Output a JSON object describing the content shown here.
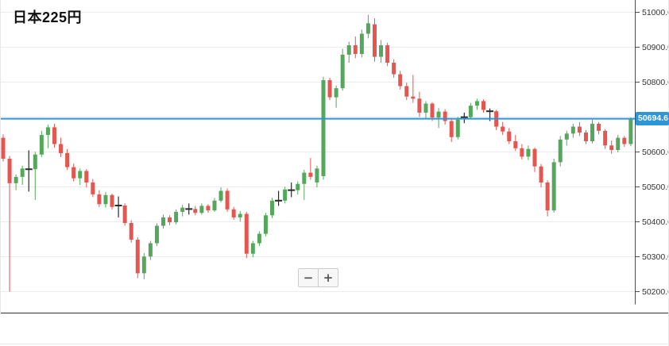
{
  "header": {
    "title": "日本225円"
  },
  "price_line": {
    "value": 50694.6,
    "label": "50694.6"
  },
  "controls": {
    "zoom_out_label": "−",
    "zoom_in_label": "+"
  },
  "colors": {
    "up": "#55a85b",
    "down": "#e4564f",
    "doji": "#2a2a2a",
    "price_line": "#2f95d9",
    "tag_bg": "#2f95d9",
    "tag_text": "#ffffff",
    "grid": "#ececec",
    "axis_line": "#4d4d4d",
    "label_text": "#333333"
  },
  "chart_data": {
    "type": "candlestick",
    "title": "日本225円",
    "legend": [],
    "grid": true,
    "x_axis": {
      "labels_visible": false
    },
    "y_axis": {
      "side": "right",
      "ticks": [
        51000.0,
        50900.0,
        50800.0,
        50700.0,
        50600.0,
        50500.0,
        50400.0,
        50300.0,
        50200.0
      ],
      "tick_format": "1-decimal",
      "range_shown": [
        50150,
        51030
      ]
    },
    "last_price": 50694.6,
    "doji_indices": [
      4,
      18,
      29,
      43,
      45,
      72,
      76
    ],
    "candles_ohlc": [
      [
        50640,
        50650,
        50572,
        50580
      ],
      [
        50580,
        50588,
        50199,
        50510
      ],
      [
        50510,
        50535,
        50490,
        50528
      ],
      [
        50528,
        50560,
        50505,
        50552
      ],
      [
        50552,
        50604,
        50486,
        50550
      ],
      [
        50550,
        50600,
        50462,
        50592
      ],
      [
        50592,
        50660,
        50585,
        50648
      ],
      [
        50648,
        50678,
        50610,
        50670
      ],
      [
        50670,
        50680,
        50612,
        50622
      ],
      [
        50622,
        50640,
        50585,
        50596
      ],
      [
        50596,
        50608,
        50548,
        50556
      ],
      [
        50556,
        50566,
        50515,
        50524
      ],
      [
        50524,
        50552,
        50505,
        50545
      ],
      [
        50545,
        50550,
        50498,
        50512
      ],
      [
        50512,
        50522,
        50470,
        50478
      ],
      [
        50478,
        50490,
        50442,
        50450
      ],
      [
        50450,
        50485,
        50440,
        50476
      ],
      [
        50476,
        50480,
        50435,
        50442
      ],
      [
        50448,
        50472,
        50412,
        50446
      ],
      [
        50446,
        50452,
        50388,
        50396
      ],
      [
        50396,
        50404,
        50340,
        50348
      ],
      [
        50348,
        50355,
        50238,
        50252
      ],
      [
        50252,
        50310,
        50235,
        50300
      ],
      [
        50300,
        50345,
        50290,
        50338
      ],
      [
        50338,
        50395,
        50330,
        50388
      ],
      [
        50388,
        50420,
        50380,
        50412
      ],
      [
        50412,
        50418,
        50390,
        50398
      ],
      [
        50398,
        50435,
        50392,
        50428
      ],
      [
        50428,
        50448,
        50415,
        50440
      ],
      [
        50438,
        50452,
        50420,
        50436
      ],
      [
        50436,
        50445,
        50418,
        50425
      ],
      [
        50425,
        50452,
        50420,
        50445
      ],
      [
        50445,
        50450,
        50425,
        50432
      ],
      [
        50432,
        50468,
        50428,
        50460
      ],
      [
        50460,
        50498,
        50455,
        50488
      ],
      [
        50488,
        50495,
        50428,
        50435
      ],
      [
        50435,
        50442,
        50405,
        50412
      ],
      [
        50412,
        50430,
        50400,
        50422
      ],
      [
        50422,
        50428,
        50295,
        50308
      ],
      [
        50308,
        50345,
        50298,
        50338
      ],
      [
        50338,
        50372,
        50330,
        50365
      ],
      [
        50365,
        50425,
        50358,
        50418
      ],
      [
        50418,
        50468,
        50410,
        50460
      ],
      [
        50462,
        50488,
        50445,
        50460
      ],
      [
        50460,
        50500,
        50452,
        50492
      ],
      [
        50492,
        50512,
        50470,
        50490
      ],
      [
        50490,
        50515,
        50478,
        50508
      ],
      [
        50508,
        50548,
        50462,
        50540
      ],
      [
        50540,
        50582,
        50520,
        50528
      ],
      [
        50512,
        50560,
        50498,
        50552
      ],
      [
        50530,
        50815,
        50520,
        50805
      ],
      [
        50805,
        50812,
        50748,
        50756
      ],
      [
        50756,
        50790,
        50726,
        50782
      ],
      [
        50782,
        50895,
        50775,
        50878
      ],
      [
        50878,
        50915,
        50855,
        50905
      ],
      [
        50905,
        50930,
        50868,
        50880
      ],
      [
        50880,
        50950,
        50870,
        50938
      ],
      [
        50938,
        50992,
        50925,
        50968
      ],
      [
        50965,
        50982,
        50858,
        50872
      ],
      [
        50872,
        50920,
        50855,
        50905
      ],
      [
        50905,
        50912,
        50845,
        50855
      ],
      [
        50855,
        50865,
        50812,
        50822
      ],
      [
        50822,
        50832,
        50778,
        50788
      ],
      [
        50788,
        50798,
        50748,
        50758
      ],
      [
        50758,
        50820,
        50740,
        50752
      ],
      [
        50752,
        50772,
        50700,
        50712
      ],
      [
        50712,
        50745,
        50695,
        50738
      ],
      [
        50738,
        50742,
        50688,
        50698
      ],
      [
        50698,
        50725,
        50668,
        50715
      ],
      [
        50715,
        50722,
        50678,
        50688
      ],
      [
        50688,
        50695,
        50628,
        50642
      ],
      [
        50642,
        50700,
        50635,
        50692
      ],
      [
        50700,
        50712,
        50682,
        50699
      ],
      [
        50699,
        50740,
        50694,
        50732
      ],
      [
        50732,
        50752,
        50720,
        50745
      ],
      [
        50745,
        50750,
        50712,
        50720
      ],
      [
        50718,
        50724,
        50688,
        50716
      ],
      [
        50716,
        50720,
        50662,
        50672
      ],
      [
        50672,
        50685,
        50648,
        50658
      ],
      [
        50658,
        50668,
        50622,
        50630
      ],
      [
        50630,
        50648,
        50602,
        50610
      ],
      [
        50610,
        50622,
        50578,
        50586
      ],
      [
        50586,
        50618,
        50576,
        50608
      ],
      [
        50608,
        50612,
        50542,
        50558
      ],
      [
        50558,
        50565,
        50498,
        50512
      ],
      [
        50512,
        50518,
        50415,
        50432
      ],
      [
        50432,
        50580,
        50426,
        50570
      ],
      [
        50570,
        50645,
        50558,
        50635
      ],
      [
        50635,
        50660,
        50618,
        50652
      ],
      [
        50652,
        50680,
        50640,
        50672
      ],
      [
        50672,
        50685,
        50645,
        50655
      ],
      [
        50655,
        50662,
        50622,
        50630
      ],
      [
        50630,
        50692,
        50624,
        50680
      ],
      [
        50680,
        50685,
        50650,
        50660
      ],
      [
        50660,
        50665,
        50608,
        50618
      ],
      [
        50618,
        50632,
        50594,
        50605
      ],
      [
        50605,
        50648,
        50598,
        50640
      ],
      [
        50640,
        50645,
        50614,
        50622
      ],
      [
        50622,
        50698,
        50616,
        50694.6
      ]
    ]
  }
}
